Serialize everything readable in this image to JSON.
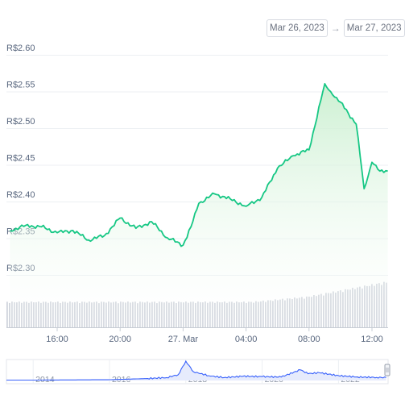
{
  "date_range": {
    "from": "Mar 26, 2023",
    "arrow": "→",
    "to": "Mar 27, 2023"
  },
  "y_axis": {
    "ticks": [
      "R$2.60",
      "R$2.55",
      "R$2.50",
      "R$2.45",
      "R$2.40",
      "R$2.35",
      "R$2.30"
    ]
  },
  "x_axis": {
    "ticks": [
      "16:00",
      "20:00",
      "27. Mar",
      "04:00",
      "08:00",
      "12:00"
    ]
  },
  "navigator": {
    "years": [
      "2014",
      "2016",
      "2018",
      "2020",
      "2022"
    ]
  },
  "colors": {
    "line": "#16c784",
    "fill_top": "#c9efcf",
    "volume": "#d0d4dc",
    "grid": "#eceff3",
    "navigator_line": "#3861fb"
  },
  "chart_data": {
    "type": "line",
    "title": "",
    "xlabel": "",
    "ylabel": "",
    "ylim": [
      2.3,
      2.6
    ],
    "x_ticks": [
      "16:00",
      "20:00",
      "27. Mar",
      "04:00",
      "08:00",
      "12:00"
    ],
    "series": [
      {
        "x": [
          "26 Mar 13:00",
          "26 Mar 14:00",
          "26 Mar 15:00",
          "26 Mar 16:00",
          "26 Mar 17:00",
          "26 Mar 18:00",
          "26 Mar 19:00",
          "26 Mar 20:00",
          "26 Mar 21:00",
          "26 Mar 22:00",
          "26 Mar 23:00",
          "27 Mar 00:00",
          "27 Mar 00:30",
          "27 Mar 01:00",
          "27 Mar 02:00",
          "27 Mar 03:00",
          "27 Mar 04:00",
          "27 Mar 05:00",
          "27 Mar 06:00",
          "27 Mar 07:00",
          "27 Mar 08:00",
          "27 Mar 09:00",
          "27 Mar 09:30",
          "27 Mar 10:00",
          "27 Mar 11:00",
          "27 Mar 11:30",
          "27 Mar 12:00",
          "27 Mar 12:30",
          "27 Mar 13:00"
        ],
        "values": [
          2.355,
          2.362,
          2.36,
          2.352,
          2.355,
          2.342,
          2.348,
          2.372,
          2.358,
          2.367,
          2.345,
          2.335,
          2.36,
          2.392,
          2.405,
          2.398,
          2.388,
          2.4,
          2.44,
          2.457,
          2.465,
          2.555,
          2.54,
          2.53,
          2.5,
          2.412,
          2.448,
          2.436,
          2.436
        ]
      }
    ],
    "volume": {
      "type": "bar",
      "values": [
        1,
        1,
        1,
        1,
        1,
        1,
        1,
        1,
        1,
        1,
        1,
        1,
        1,
        1,
        1,
        1,
        1,
        1,
        1,
        1.05,
        1.1,
        1.15,
        1.2,
        1.3,
        1.4,
        1.5,
        1.6,
        1.7,
        1.8
      ]
    },
    "navigator_series": {
      "type": "line",
      "x": [
        2013.3,
        2014,
        2015,
        2016,
        2017,
        2017.5,
        2017.8,
        2018.0,
        2018.2,
        2018.6,
        2019,
        2019.5,
        2020,
        2020.5,
        2021.0,
        2021.2,
        2021.5,
        2022,
        2022.5,
        2023,
        2023.25
      ],
      "values": [
        0.02,
        0.02,
        0.03,
        0.04,
        0.1,
        0.15,
        0.3,
        1.0,
        0.45,
        0.25,
        0.15,
        0.22,
        0.2,
        0.18,
        0.55,
        0.35,
        0.4,
        0.25,
        0.18,
        0.16,
        0.15
      ]
    }
  }
}
